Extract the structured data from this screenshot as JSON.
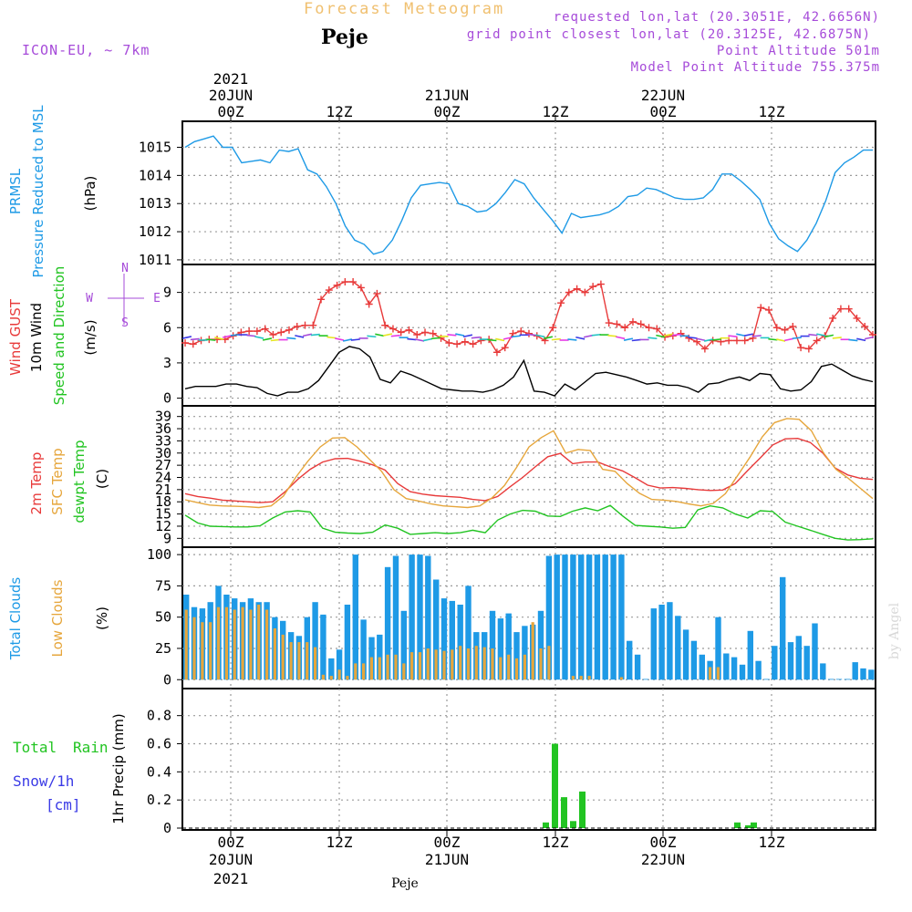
{
  "header": {
    "product": "Forecast Meteogram",
    "location": "Peje",
    "model": "ICON-EU, ~ 7km",
    "requested": "requested lon,lat (20.3051E, 42.6656N)",
    "grid_point": "grid point closest lon,lat (20.3125E, 42.6875N)",
    "point_altitude": "Point Altitude 501m",
    "model_altitude": "Model Point Altitude 755.375m",
    "credit": "by Angel",
    "footer_location": "Peje"
  },
  "time_axis": {
    "labels": [
      "00Z",
      "12Z",
      "00Z",
      "12Z",
      "00Z",
      "12Z"
    ],
    "date_labels": [
      "20JUN",
      "21JUN",
      "22JUN"
    ],
    "year": "2021"
  },
  "colors": {
    "blue": "#1E9AE6",
    "red": "#E83A3A",
    "orange": "#E6A63C",
    "green": "#22C422",
    "purple": "#A64BD9",
    "title_orange": "#F0C070",
    "snow": "#3A3AE6"
  },
  "chart_data": [
    {
      "type": "line",
      "title": "",
      "series_labels": [
        "PRMSL",
        "Pressure Reduced to MSL"
      ],
      "ylabel": "(hPa)",
      "yticks": [
        1011,
        1012,
        1013,
        1014,
        1015
      ],
      "ylim": [
        1010.9,
        1015.6
      ],
      "series": [
        {
          "name": "PRMSL",
          "color": "#1E9AE6",
          "values": [
            1015.0,
            1015.2,
            1015.3,
            1015.4,
            1015.0,
            1015.0,
            1014.45,
            1014.5,
            1014.55,
            1014.45,
            1014.9,
            1014.85,
            1014.95,
            1014.2,
            1014.05,
            1013.6,
            1013.0,
            1012.2,
            1011.7,
            1011.55,
            1011.2,
            1011.3,
            1011.7,
            1012.4,
            1013.2,
            1013.65,
            1013.7,
            1013.75,
            1013.7,
            1013.0,
            1012.9,
            1012.7,
            1012.75,
            1013.0,
            1013.4,
            1013.85,
            1013.7,
            1013.2,
            1012.8,
            1012.4,
            1011.95,
            1012.65,
            1012.5,
            1012.55,
            1012.6,
            1012.7,
            1012.9,
            1013.25,
            1013.3,
            1013.55,
            1013.5,
            1013.35,
            1013.2,
            1013.15,
            1013.15,
            1013.2,
            1013.5,
            1014.05,
            1014.05,
            1013.8,
            1013.5,
            1013.15,
            1012.3,
            1011.75,
            1011.5,
            1011.3,
            1011.7,
            1012.3,
            1013.1,
            1014.1,
            1014.45,
            1014.65,
            1014.9,
            1014.9
          ]
        }
      ]
    },
    {
      "type": "line",
      "title": "",
      "series_labels": [
        "Wind GUST",
        "10m Wind",
        "Speed and Direction"
      ],
      "ylabel": "(m/s)",
      "compass": {
        "n": "N",
        "s": "S",
        "w": "W",
        "e": "E"
      },
      "yticks": [
        0,
        3,
        6,
        9
      ],
      "ylim": [
        -0.5,
        10.6
      ],
      "series": [
        {
          "name": "Wind GUST",
          "color": "#E83A3A",
          "marker": "+",
          "values": [
            4.7,
            4.6,
            4.9,
            5.0,
            5.0,
            5.0,
            5.3,
            5.6,
            5.7,
            5.7,
            5.9,
            5.4,
            5.6,
            5.8,
            6.1,
            6.2,
            6.2,
            8.4,
            9.2,
            9.6,
            9.9,
            9.9,
            9.4,
            8.0,
            8.9,
            6.2,
            5.9,
            5.6,
            5.8,
            5.4,
            5.6,
            5.5,
            5.1,
            4.7,
            4.6,
            4.8,
            4.6,
            4.9,
            5.0,
            3.9,
            4.3,
            5.5,
            5.7,
            5.5,
            5.3,
            4.9,
            6.0,
            8.1,
            9.0,
            9.3,
            9.0,
            9.5,
            9.7,
            6.4,
            6.3,
            6.0,
            6.5,
            6.3,
            6.0,
            5.9,
            5.2,
            5.3,
            5.5,
            5.1,
            4.8,
            4.2,
            4.9,
            4.8,
            4.9,
            4.9,
            4.9,
            5.1,
            7.7,
            7.5,
            6.0,
            5.8,
            6.1,
            4.3,
            4.2,
            4.9,
            5.3,
            6.8,
            7.6,
            7.6,
            6.8,
            6.1,
            5.4
          ]
        },
        {
          "name": "10m Wind",
          "color": "#000000",
          "values": [
            0.8,
            1.0,
            1.0,
            1.0,
            1.2,
            1.2,
            1.0,
            0.9,
            0.4,
            0.2,
            0.5,
            0.5,
            0.8,
            1.5,
            2.7,
            3.9,
            4.4,
            4.2,
            3.5,
            1.6,
            1.3,
            2.3,
            2.0,
            1.6,
            1.2,
            0.8,
            0.7,
            0.6,
            0.6,
            0.5,
            0.7,
            1.1,
            1.8,
            3.2,
            0.6,
            0.5,
            0.2,
            1.2,
            0.7,
            1.4,
            2.1,
            2.2,
            2.0,
            1.8,
            1.5,
            1.2,
            1.3,
            1.1,
            1.1,
            0.9,
            0.5,
            1.2,
            1.3,
            1.6,
            1.8,
            1.5,
            2.1,
            2.0,
            0.8,
            0.6,
            0.7,
            1.4,
            2.7,
            2.9,
            2.4,
            1.9,
            1.6,
            1.4
          ]
        }
      ]
    },
    {
      "type": "line",
      "title": "",
      "series_labels": [
        "2m Temp",
        "SFC Temp",
        "dewpt Temp"
      ],
      "ylabel": "(C)",
      "yticks": [
        9,
        12,
        15,
        18,
        21,
        24,
        27,
        30,
        33,
        36,
        39
      ],
      "ylim": [
        7.5,
        40.5
      ],
      "series": [
        {
          "name": "2m Temp",
          "color": "#E83A3A",
          "values": [
            20.0,
            19.3,
            18.9,
            18.4,
            18.2,
            18.0,
            17.8,
            18.0,
            20.5,
            23.5,
            26.0,
            27.8,
            28.6,
            28.7,
            28.0,
            27.1,
            25.8,
            22.5,
            20.5,
            19.9,
            19.5,
            19.3,
            19.1,
            18.6,
            18.3,
            19.3,
            21.7,
            24.0,
            26.6,
            29.1,
            29.9,
            27.4,
            27.8,
            27.8,
            26.6,
            25.6,
            23.9,
            22.1,
            21.4,
            21.5,
            21.3,
            21.0,
            20.8,
            20.9,
            22.5,
            25.7,
            28.8,
            32.0,
            33.5,
            33.6,
            32.6,
            30.0,
            26.3,
            24.6,
            23.8,
            23.5
          ]
        },
        {
          "name": "SFC Temp",
          "color": "#E6A63C",
          "values": [
            18.5,
            17.8,
            17.2,
            17.0,
            16.9,
            16.8,
            16.6,
            17.0,
            19.4,
            24.0,
            28.0,
            31.5,
            33.7,
            33.8,
            31.5,
            28.5,
            25.5,
            21.0,
            18.8,
            18.2,
            17.5,
            17.0,
            16.8,
            16.6,
            17.0,
            19.0,
            22.0,
            26.5,
            31.5,
            33.8,
            35.5,
            30.0,
            30.9,
            30.6,
            26.0,
            25.5,
            22.5,
            20.1,
            18.6,
            18.4,
            18.1,
            17.5,
            17.0,
            17.6,
            20.0,
            24.5,
            29.0,
            34.0,
            37.5,
            38.5,
            38.3,
            35.5,
            30.0,
            26.0,
            23.8,
            21.3,
            18.8
          ]
        },
        {
          "name": "dewpt Temp",
          "color": "#22C422",
          "values": [
            14.7,
            12.8,
            12.0,
            11.9,
            11.8,
            11.8,
            12.1,
            14.0,
            15.5,
            15.8,
            15.5,
            11.5,
            10.5,
            10.3,
            10.2,
            10.5,
            12.3,
            11.5,
            10.0,
            10.2,
            10.4,
            10.2,
            10.4,
            11.0,
            10.4,
            13.5,
            15.0,
            15.9,
            15.7,
            14.5,
            14.4,
            15.7,
            16.5,
            15.8,
            17.1,
            14.5,
            12.2,
            12.0,
            11.8,
            11.5,
            11.7,
            16.0,
            17.0,
            16.5,
            15.0,
            14.0,
            15.8,
            15.6,
            13.0,
            12.0,
            11.0,
            10.0,
            9.0,
            8.6,
            8.7,
            8.9
          ]
        }
      ]
    },
    {
      "type": "bar",
      "title": "",
      "series_labels": [
        "Total Clouds",
        "Low Clouds"
      ],
      "ylabel": "(%)",
      "yticks": [
        0,
        25,
        50,
        75,
        100
      ],
      "ylim": [
        -2,
        103
      ],
      "series": [
        {
          "name": "Total Clouds",
          "color": "#1E9AE6",
          "values": [
            68,
            58,
            57,
            62,
            75,
            68,
            65,
            62,
            65,
            62,
            62,
            50,
            47,
            38,
            35,
            50,
            62,
            52,
            17,
            24,
            60,
            100,
            48,
            34,
            36,
            90,
            99,
            55,
            100,
            100,
            99,
            80,
            65,
            63,
            60,
            75,
            38,
            38,
            55,
            49,
            53,
            38,
            43,
            44,
            55,
            99,
            100,
            100,
            100,
            100,
            100,
            100,
            100,
            100,
            100,
            31,
            20,
            0,
            57,
            60,
            62,
            51,
            40,
            31,
            20,
            15,
            50,
            21,
            18,
            12,
            39,
            15,
            0,
            27,
            82,
            30,
            35,
            27,
            45,
            13,
            0,
            0,
            0,
            14,
            9,
            8
          ]
        },
        {
          "name": "Low Clouds",
          "color": "#E6A63C",
          "values": [
            56,
            50,
            46,
            46,
            58,
            58,
            56,
            58,
            56,
            60,
            56,
            41,
            36,
            30,
            30,
            30,
            26,
            4,
            3,
            8,
            3,
            13,
            13,
            18,
            18,
            20,
            20,
            13,
            22,
            22,
            25,
            24,
            23,
            24,
            27,
            25,
            27,
            26,
            25,
            18,
            20,
            17,
            20,
            46,
            25,
            27,
            0,
            0,
            3,
            3,
            3,
            0,
            0,
            0,
            2,
            0,
            0,
            0,
            0,
            0,
            0,
            0,
            0,
            0,
            0,
            10,
            10,
            0,
            0,
            0,
            0,
            0,
            0,
            0,
            0,
            0,
            0,
            0,
            0,
            0,
            0,
            0,
            0,
            0,
            0,
            0
          ]
        }
      ]
    },
    {
      "type": "bar",
      "title": "",
      "series_labels": [
        "Total",
        "Rain",
        "Snow/1h",
        "[cm]"
      ],
      "ylabel": "1hr Precip (mm)",
      "yticks": [
        0,
        0.2,
        0.4,
        0.6,
        0.8
      ],
      "yticks_labels": [
        "0",
        "0.2",
        "0.4",
        "0.6",
        "0.8"
      ],
      "ylim": [
        0,
        0.96
      ],
      "series": [
        {
          "name": "Total Rain",
          "color": "#22C422",
          "values": [
            {
              "x": 33,
              "v": 0.04
            },
            {
              "x": 34,
              "v": 0.6
            },
            {
              "x": 35,
              "v": 0.22
            },
            {
              "x": 36,
              "v": 0.05
            },
            {
              "x": 37,
              "v": 0.26
            },
            {
              "x": 54,
              "v": 0.04
            },
            {
              "x": 55.2,
              "v": 0.02
            },
            {
              "x": 55.8,
              "v": 0.04
            }
          ]
        }
      ]
    }
  ]
}
